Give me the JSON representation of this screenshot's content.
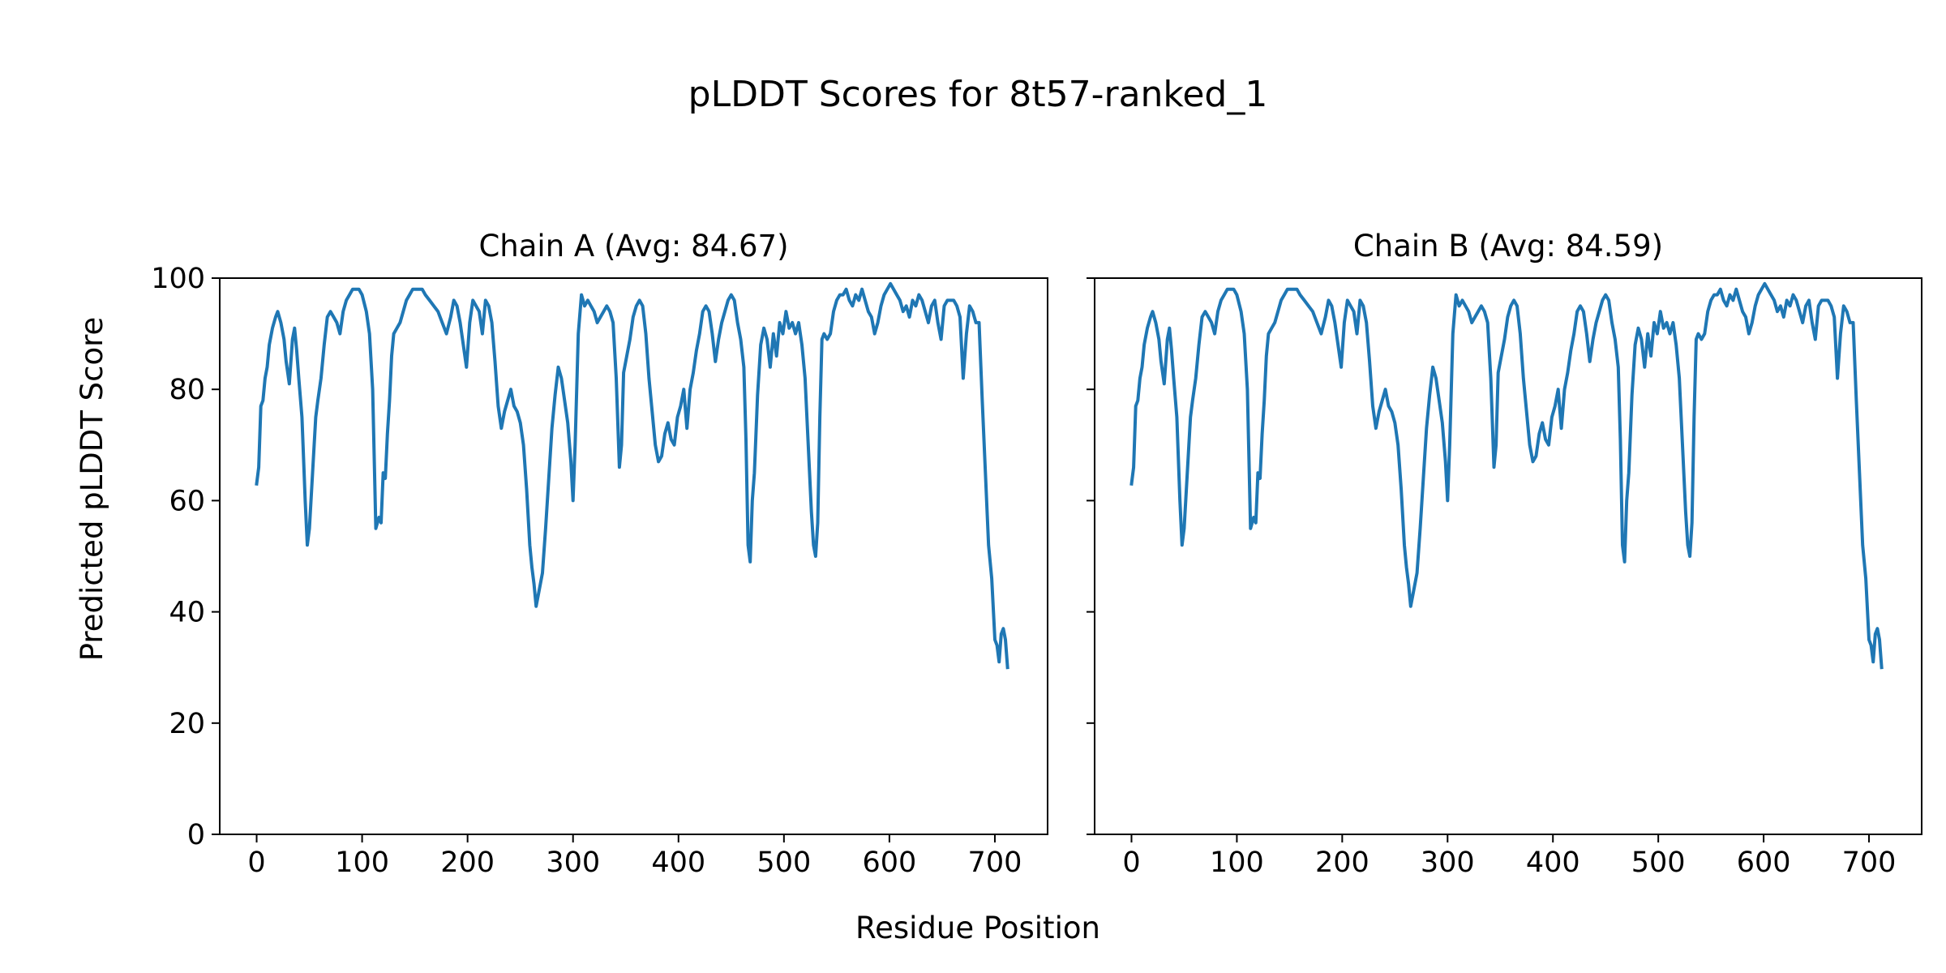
{
  "figure": {
    "suptitle": "pLDDT Scores for 8t57-ranked_1",
    "xlabel": "Residue Position",
    "ylabel": "Predicted pLDDT Score",
    "line_color": "#1f77b4"
  },
  "chart_data": [
    {
      "type": "line",
      "title": "Chain A (Avg: 84.67)",
      "xlabel": "Residue Position",
      "ylabel": "Predicted pLDDT Score",
      "xlim": [
        -35,
        750
      ],
      "ylim": [
        0,
        100
      ],
      "xticks": [
        0,
        100,
        200,
        300,
        400,
        500,
        600,
        700
      ],
      "yticks": [
        0,
        20,
        40,
        60,
        80,
        100
      ],
      "grid": false,
      "series": [
        {
          "name": "Chain A",
          "x": [
            0,
            2,
            4,
            6,
            8,
            10,
            12,
            15,
            18,
            20,
            23,
            26,
            28,
            31,
            34,
            36,
            38,
            40,
            43,
            46,
            48,
            50,
            53,
            56,
            58,
            61,
            64,
            67,
            70,
            73,
            76,
            79,
            82,
            85,
            88,
            91,
            94,
            97,
            100,
            104,
            107,
            110,
            113,
            116,
            118,
            120,
            122,
            124,
            126,
            128,
            130,
            133,
            136,
            139,
            142,
            145,
            148,
            151,
            154,
            157,
            160,
            164,
            168,
            172,
            176,
            180,
            184,
            187,
            190,
            193,
            196,
            199,
            202,
            205,
            208,
            211,
            214,
            217,
            220,
            223,
            226,
            229,
            232,
            235,
            238,
            241,
            244,
            247,
            250,
            253,
            256,
            259,
            261,
            263,
            265,
            268,
            271,
            274,
            277,
            280,
            283,
            286,
            289,
            292,
            295,
            298,
            300,
            302,
            305,
            308,
            311,
            314,
            317,
            320,
            323,
            326,
            329,
            332,
            335,
            338,
            341,
            344,
            346,
            348,
            351,
            354,
            357,
            360,
            363,
            366,
            369,
            372,
            375,
            378,
            381,
            384,
            387,
            390,
            393,
            396,
            399,
            402,
            405,
            408,
            411,
            414,
            417,
            420,
            423,
            426,
            429,
            432,
            435,
            438,
            441,
            444,
            447,
            450,
            453,
            456,
            459,
            462,
            464,
            466,
            468,
            470,
            472,
            475,
            478,
            481,
            484,
            487,
            490,
            493,
            496,
            499,
            502,
            505,
            508,
            511,
            514,
            517,
            520,
            523,
            526,
            528,
            530,
            532,
            534,
            536,
            538,
            541,
            544,
            547,
            550,
            553,
            556,
            559,
            562,
            565,
            568,
            571,
            574,
            577,
            580,
            583,
            586,
            589,
            592,
            595,
            598,
            601,
            604,
            607,
            610,
            613,
            616,
            619,
            622,
            625,
            628,
            631,
            634,
            637,
            640,
            643,
            646,
            649,
            652,
            655,
            658,
            661,
            664,
            667,
            670,
            673,
            676,
            679,
            682,
            685,
            688,
            691,
            694,
            697,
            700,
            702,
            704,
            706,
            708,
            710,
            712
          ],
          "values": [
            63,
            66,
            77,
            78,
            82,
            84,
            88,
            91,
            93,
            94,
            92,
            89,
            85,
            81,
            89,
            91,
            87,
            82,
            75,
            60,
            52,
            55,
            65,
            75,
            78,
            82,
            88,
            93,
            94,
            93,
            92,
            90,
            94,
            96,
            97,
            98,
            98,
            98,
            97,
            94,
            90,
            80,
            55,
            57,
            56,
            65,
            64,
            72,
            78,
            86,
            90,
            91,
            92,
            94,
            96,
            97,
            98,
            98,
            98,
            98,
            97,
            96,
            95,
            94,
            92,
            90,
            93,
            96,
            95,
            92,
            88,
            84,
            92,
            96,
            95,
            94,
            90,
            96,
            95,
            92,
            85,
            77,
            73,
            76,
            78,
            80,
            77,
            76,
            74,
            70,
            62,
            52,
            48,
            45,
            41,
            44,
            47,
            55,
            64,
            73,
            79,
            84,
            82,
            78,
            74,
            67,
            60,
            70,
            90,
            97,
            95,
            96,
            95,
            94,
            92,
            93,
            94,
            95,
            94,
            92,
            82,
            66,
            70,
            83,
            86,
            89,
            93,
            95,
            96,
            95,
            90,
            82,
            76,
            70,
            67,
            68,
            72,
            74,
            71,
            70,
            75,
            77,
            80,
            73,
            80,
            83,
            87,
            90,
            94,
            95,
            94,
            90,
            85,
            89,
            92,
            94,
            96,
            97,
            96,
            92,
            89,
            84,
            71,
            52,
            49,
            60,
            65,
            79,
            88,
            91,
            89,
            84,
            90,
            86,
            92,
            90,
            94,
            91,
            92,
            90,
            92,
            88,
            82,
            70,
            58,
            52,
            50,
            56,
            75,
            89,
            90,
            89,
            90,
            94,
            96,
            97,
            97,
            98,
            96,
            95,
            97,
            96,
            98,
            96,
            94,
            93,
            90,
            92,
            95,
            97,
            98,
            99,
            98,
            97,
            96,
            94,
            95,
            93,
            96,
            95,
            97,
            96,
            94,
            92,
            95,
            96,
            92,
            89,
            95,
            96,
            96,
            96,
            95,
            93,
            82,
            90,
            95,
            94,
            92,
            92,
            78,
            65,
            52,
            46,
            35,
            34,
            31,
            36,
            37,
            35,
            30
          ]
        }
      ]
    },
    {
      "type": "line",
      "title": "Chain B (Avg: 84.59)",
      "xlabel": "Residue Position",
      "ylabel": "",
      "xlim": [
        -35,
        750
      ],
      "ylim": [
        0,
        100
      ],
      "xticks": [
        0,
        100,
        200,
        300,
        400,
        500,
        600,
        700
      ],
      "yticks": [
        0,
        20,
        40,
        60,
        80,
        100
      ],
      "grid": false,
      "series": [
        {
          "name": "Chain B",
          "x": [
            0,
            2,
            4,
            6,
            8,
            10,
            12,
            15,
            18,
            20,
            23,
            26,
            28,
            31,
            34,
            36,
            38,
            40,
            43,
            46,
            48,
            50,
            53,
            56,
            58,
            61,
            64,
            67,
            70,
            73,
            76,
            79,
            82,
            85,
            88,
            91,
            94,
            97,
            100,
            104,
            107,
            110,
            113,
            116,
            118,
            120,
            122,
            124,
            126,
            128,
            130,
            133,
            136,
            139,
            142,
            145,
            148,
            151,
            154,
            157,
            160,
            164,
            168,
            172,
            176,
            180,
            184,
            187,
            190,
            193,
            196,
            199,
            202,
            205,
            208,
            211,
            214,
            217,
            220,
            223,
            226,
            229,
            232,
            235,
            238,
            241,
            244,
            247,
            250,
            253,
            256,
            259,
            261,
            263,
            265,
            268,
            271,
            274,
            277,
            280,
            283,
            286,
            289,
            292,
            295,
            298,
            300,
            302,
            305,
            308,
            311,
            314,
            317,
            320,
            323,
            326,
            329,
            332,
            335,
            338,
            341,
            344,
            346,
            348,
            351,
            354,
            357,
            360,
            363,
            366,
            369,
            372,
            375,
            378,
            381,
            384,
            387,
            390,
            393,
            396,
            399,
            402,
            405,
            408,
            411,
            414,
            417,
            420,
            423,
            426,
            429,
            432,
            435,
            438,
            441,
            444,
            447,
            450,
            453,
            456,
            459,
            462,
            464,
            466,
            468,
            470,
            472,
            475,
            478,
            481,
            484,
            487,
            490,
            493,
            496,
            499,
            502,
            505,
            508,
            511,
            514,
            517,
            520,
            523,
            526,
            528,
            530,
            532,
            534,
            536,
            538,
            541,
            544,
            547,
            550,
            553,
            556,
            559,
            562,
            565,
            568,
            571,
            574,
            577,
            580,
            583,
            586,
            589,
            592,
            595,
            598,
            601,
            604,
            607,
            610,
            613,
            616,
            619,
            622,
            625,
            628,
            631,
            634,
            637,
            640,
            643,
            646,
            649,
            652,
            655,
            658,
            661,
            664,
            667,
            670,
            673,
            676,
            679,
            682,
            685,
            688,
            691,
            694,
            697,
            700,
            702,
            704,
            706,
            708,
            710,
            712
          ],
          "values": [
            63,
            66,
            77,
            78,
            82,
            84,
            88,
            91,
            93,
            94,
            92,
            89,
            85,
            81,
            89,
            91,
            87,
            82,
            75,
            60,
            52,
            55,
            65,
            75,
            78,
            82,
            88,
            93,
            94,
            93,
            92,
            90,
            94,
            96,
            97,
            98,
            98,
            98,
            97,
            94,
            90,
            80,
            55,
            57,
            56,
            65,
            64,
            72,
            78,
            86,
            90,
            91,
            92,
            94,
            96,
            97,
            98,
            98,
            98,
            98,
            97,
            96,
            95,
            94,
            92,
            90,
            93,
            96,
            95,
            92,
            88,
            84,
            92,
            96,
            95,
            94,
            90,
            96,
            95,
            92,
            85,
            77,
            73,
            76,
            78,
            80,
            77,
            76,
            74,
            70,
            62,
            52,
            48,
            45,
            41,
            44,
            47,
            55,
            64,
            73,
            79,
            84,
            82,
            78,
            74,
            67,
            60,
            70,
            90,
            97,
            95,
            96,
            95,
            94,
            92,
            93,
            94,
            95,
            94,
            92,
            82,
            66,
            70,
            83,
            86,
            89,
            93,
            95,
            96,
            95,
            90,
            82,
            76,
            70,
            67,
            68,
            72,
            74,
            71,
            70,
            75,
            77,
            80,
            73,
            80,
            83,
            87,
            90,
            94,
            95,
            94,
            90,
            85,
            89,
            92,
            94,
            96,
            97,
            96,
            92,
            89,
            84,
            71,
            52,
            49,
            60,
            65,
            79,
            88,
            91,
            89,
            84,
            90,
            86,
            92,
            90,
            94,
            91,
            92,
            90,
            92,
            88,
            82,
            70,
            58,
            52,
            50,
            56,
            75,
            89,
            90,
            89,
            90,
            94,
            96,
            97,
            97,
            98,
            96,
            95,
            97,
            96,
            98,
            96,
            94,
            93,
            90,
            92,
            95,
            97,
            98,
            99,
            98,
            97,
            96,
            94,
            95,
            93,
            96,
            95,
            97,
            96,
            94,
            92,
            95,
            96,
            92,
            89,
            95,
            96,
            96,
            96,
            95,
            93,
            82,
            90,
            95,
            94,
            92,
            92,
            78,
            65,
            52,
            46,
            35,
            34,
            31,
            36,
            37,
            35,
            30
          ]
        }
      ]
    }
  ]
}
